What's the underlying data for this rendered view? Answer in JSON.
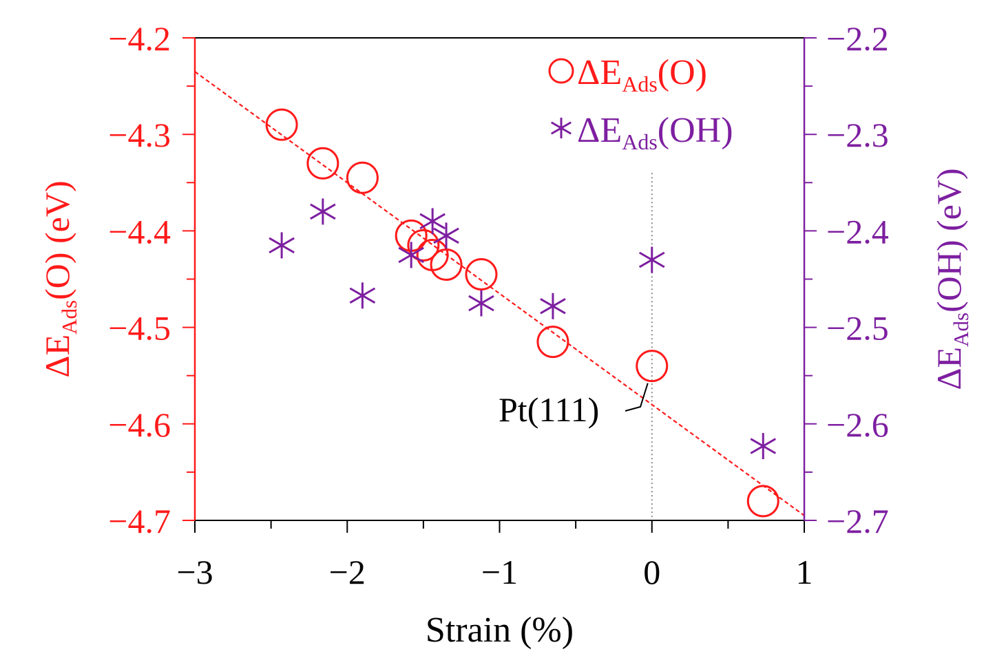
{
  "chart_data": {
    "type": "scatter",
    "xlabel": "Strain (%)",
    "xlim": [
      -3,
      1
    ],
    "x_ticks": [
      -3,
      -2,
      -1,
      0,
      1
    ],
    "x_tick_labels": [
      "−3",
      "−2",
      "−1",
      "0",
      "1"
    ],
    "left_axis": {
      "label_prefix": "ΔE",
      "label_sub": "Ads",
      "label_suffix": "(O) (eV)",
      "ylim": [
        -4.7,
        -4.2
      ],
      "ticks": [
        -4.2,
        -4.3,
        -4.4,
        -4.5,
        -4.6,
        -4.7
      ],
      "tick_labels": [
        "−4.2",
        "−4.3",
        "−4.4",
        "−4.5",
        "−4.6",
        "−4.7"
      ],
      "color": "#ff1a1a"
    },
    "right_axis": {
      "label_prefix": "ΔE",
      "label_sub": "Ads",
      "label_suffix": "(OH) (eV)",
      "ylim": [
        -2.7,
        -2.2
      ],
      "ticks": [
        -2.2,
        -2.3,
        -2.4,
        -2.5,
        -2.6,
        -2.7
      ],
      "tick_labels": [
        "−2.2",
        "−2.3",
        "−2.4",
        "−2.5",
        "−2.6",
        "−2.7"
      ],
      "color": "#7d1fa0"
    },
    "series": [
      {
        "name": "ΔEAds(O)",
        "legend_prefix": "ΔE",
        "legend_sub": "Ads",
        "legend_suffix": "(O)",
        "axis": "left",
        "marker": "circle",
        "color": "#ff1a1a",
        "points": [
          [
            -2.43,
            -4.29
          ],
          [
            -2.16,
            -4.33
          ],
          [
            -1.9,
            -4.345
          ],
          [
            -1.58,
            -4.405
          ],
          [
            -1.5,
            -4.415
          ],
          [
            -1.44,
            -4.425
          ],
          [
            -1.35,
            -4.435
          ],
          [
            -1.12,
            -4.445
          ],
          [
            -0.65,
            -4.515
          ],
          [
            0.0,
            -4.54
          ],
          [
            0.73,
            -4.68
          ]
        ]
      },
      {
        "name": "ΔEAds(OH)",
        "legend_prefix": "ΔE",
        "legend_sub": "Ads",
        "legend_suffix": "(OH)",
        "axis": "right",
        "marker": "asterisk",
        "color": "#7d1fa0",
        "points": [
          [
            -2.43,
            -2.415
          ],
          [
            -2.16,
            -2.38
          ],
          [
            -1.9,
            -2.467
          ],
          [
            -1.58,
            -2.425
          ],
          [
            -1.44,
            -2.39
          ],
          [
            -1.35,
            -2.405
          ],
          [
            -1.12,
            -2.475
          ],
          [
            -0.65,
            -2.478
          ],
          [
            0.0,
            -2.43
          ],
          [
            0.73,
            -2.623
          ]
        ]
      }
    ],
    "fit_line": {
      "series": "ΔEAds(O)",
      "style": "dashed",
      "from": [
        -3,
        -4.235
      ],
      "to": [
        1,
        -4.695
      ]
    },
    "reference_line": {
      "x": 0,
      "y_from": -4.34,
      "y_to": -4.7,
      "style": "dotted"
    },
    "annotation": {
      "text": "Pt(111)",
      "target": [
        0.0,
        -4.54
      ]
    },
    "legend_position": "top-right"
  }
}
